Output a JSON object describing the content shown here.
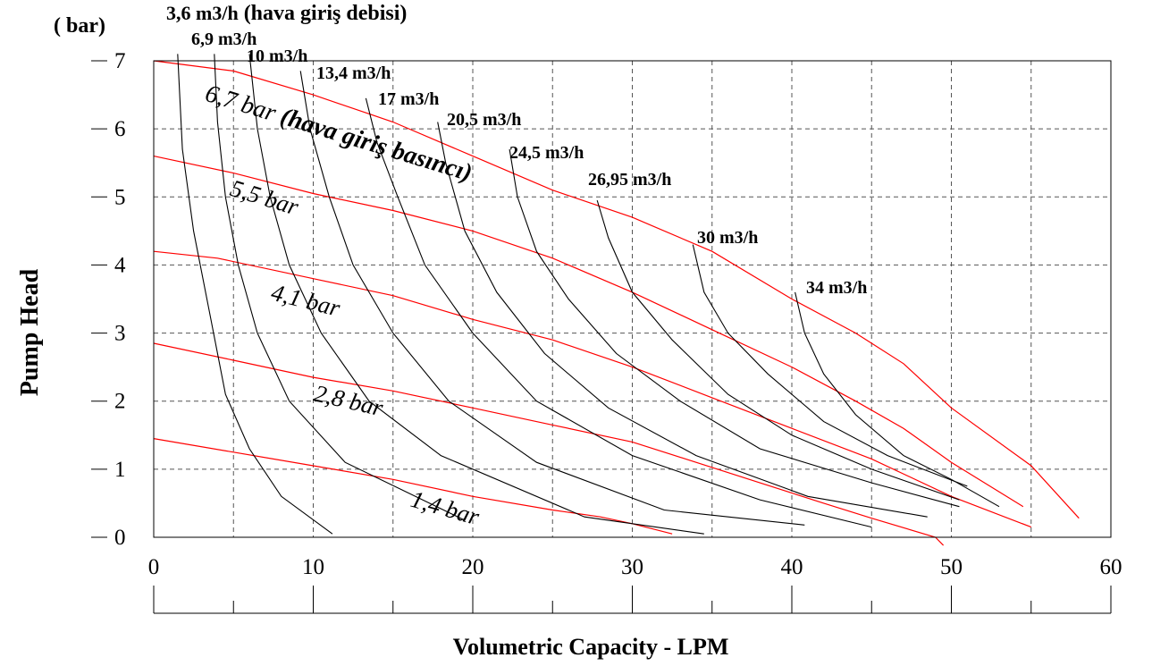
{
  "chart_data": {
    "type": "line",
    "xlabel": "Volumetric Capacity - LPM",
    "ylabel": "Pump Head",
    "yunit": "( bar)",
    "xlim": [
      0,
      60
    ],
    "ylim": [
      0,
      7
    ],
    "xticks": [
      "0",
      "10",
      "20",
      "30",
      "40",
      "50",
      "60"
    ],
    "yticks": [
      "0",
      "1",
      "2",
      "3",
      "4",
      "5",
      "6",
      "7"
    ],
    "grid": true,
    "colors": {
      "pressure": "#ff0000",
      "airflow": "#000000",
      "grid": "#555555"
    },
    "pressure_curves": [
      {
        "name": "6,7 bar",
        "suffix": " (hava giriş basıncı)",
        "points": [
          [
            0,
            7.0
          ],
          [
            5,
            6.85
          ],
          [
            10,
            6.5
          ],
          [
            15,
            6.1
          ],
          [
            20,
            5.6
          ],
          [
            25,
            5.1
          ],
          [
            30,
            4.7
          ],
          [
            35,
            4.2
          ],
          [
            40,
            3.5
          ],
          [
            44,
            3.0
          ],
          [
            47,
            2.55
          ],
          [
            50,
            1.9
          ],
          [
            55,
            1.05
          ],
          [
            58,
            0.28
          ]
        ]
      },
      {
        "name": "5,5 bar",
        "suffix": "",
        "points": [
          [
            0,
            5.6
          ],
          [
            5,
            5.35
          ],
          [
            10,
            5.05
          ],
          [
            15,
            4.8
          ],
          [
            20,
            4.5
          ],
          [
            25,
            4.1
          ],
          [
            30,
            3.6
          ],
          [
            35,
            3.05
          ],
          [
            40,
            2.5
          ],
          [
            44,
            2.0
          ],
          [
            47,
            1.6
          ],
          [
            50,
            1.1
          ],
          [
            54.5,
            0.45
          ]
        ]
      },
      {
        "name": "4,1 bar",
        "suffix": "",
        "points": [
          [
            0,
            4.2
          ],
          [
            4,
            4.1
          ],
          [
            10,
            3.8
          ],
          [
            15,
            3.55
          ],
          [
            20,
            3.2
          ],
          [
            25,
            2.9
          ],
          [
            30,
            2.5
          ],
          [
            35,
            2.05
          ],
          [
            40,
            1.6
          ],
          [
            45,
            1.15
          ],
          [
            50,
            0.6
          ],
          [
            55,
            0.15
          ]
        ]
      },
      {
        "name": "2,8 bar",
        "suffix": "",
        "points": [
          [
            0,
            2.85
          ],
          [
            5,
            2.6
          ],
          [
            10,
            2.35
          ],
          [
            15,
            2.15
          ],
          [
            20,
            1.9
          ],
          [
            25,
            1.65
          ],
          [
            30,
            1.4
          ],
          [
            34,
            1.1
          ],
          [
            38,
            0.8
          ],
          [
            42,
            0.5
          ],
          [
            45,
            0.28
          ],
          [
            49,
            0.0
          ],
          [
            49.5,
            -0.12
          ]
        ]
      },
      {
        "name": "1,4 bar",
        "suffix": "",
        "points": [
          [
            0,
            1.45
          ],
          [
            5,
            1.25
          ],
          [
            10,
            1.05
          ],
          [
            15,
            0.85
          ],
          [
            20,
            0.6
          ],
          [
            25,
            0.4
          ],
          [
            28,
            0.3
          ],
          [
            30,
            0.2
          ],
          [
            32.5,
            0.05
          ]
        ]
      }
    ],
    "airflow_curves": [
      {
        "name": "3,6 m3/h",
        "suffix": " (hava giriş debisi)",
        "points": [
          [
            1.5,
            7.1
          ],
          [
            1.8,
            5.7
          ],
          [
            2.5,
            4.5
          ],
          [
            3.5,
            3.3
          ],
          [
            4.5,
            2.1
          ],
          [
            6,
            1.3
          ],
          [
            8,
            0.6
          ],
          [
            11.2,
            0.05
          ]
        ]
      },
      {
        "name": "6,9 m3/h",
        "suffix": "",
        "points": [
          [
            3.8,
            7.1
          ],
          [
            4,
            6.1
          ],
          [
            4.5,
            5.0
          ],
          [
            5.3,
            4.0
          ],
          [
            6.5,
            3.0
          ],
          [
            8.5,
            2.0
          ],
          [
            12,
            1.1
          ],
          [
            19.5,
            0.25
          ]
        ]
      },
      {
        "name": "10 m3/h",
        "suffix": "",
        "points": [
          [
            6,
            7.1
          ],
          [
            6.5,
            6.0
          ],
          [
            7.3,
            5.0
          ],
          [
            8.5,
            4.0
          ],
          [
            10.5,
            3.0
          ],
          [
            13.5,
            2.0
          ],
          [
            18,
            1.2
          ],
          [
            27,
            0.3
          ],
          [
            34.5,
            0.05
          ]
        ]
      },
      {
        "name": "13,4 m3/h",
        "suffix": "",
        "points": [
          [
            9.2,
            6.85
          ],
          [
            9.8,
            6.0
          ],
          [
            11,
            5.0
          ],
          [
            12.5,
            4.0
          ],
          [
            15,
            3.0
          ],
          [
            18.5,
            2.0
          ],
          [
            24,
            1.1
          ],
          [
            32,
            0.4
          ],
          [
            40.8,
            0.18
          ]
        ]
      },
      {
        "name": "17 m3/h",
        "suffix": "",
        "points": [
          [
            13.3,
            6.45
          ],
          [
            14,
            5.8
          ],
          [
            15.3,
            5.0
          ],
          [
            17,
            4.0
          ],
          [
            20,
            3.0
          ],
          [
            24,
            2.0
          ],
          [
            30,
            1.2
          ],
          [
            38,
            0.55
          ],
          [
            45,
            0.15
          ]
        ]
      },
      {
        "name": "20,5 m3/h",
        "suffix": "",
        "points": [
          [
            17.8,
            6.1
          ],
          [
            18.3,
            5.5
          ],
          [
            19.5,
            4.5
          ],
          [
            21.5,
            3.6
          ],
          [
            24.5,
            2.7
          ],
          [
            28.5,
            1.9
          ],
          [
            34,
            1.2
          ],
          [
            41,
            0.6
          ],
          [
            48.5,
            0.3
          ]
        ]
      },
      {
        "name": "24,5 m3/h",
        "suffix": "",
        "points": [
          [
            22.3,
            5.7
          ],
          [
            22.8,
            5.0
          ],
          [
            24,
            4.2
          ],
          [
            26,
            3.5
          ],
          [
            29,
            2.7
          ],
          [
            33,
            2.0
          ],
          [
            38,
            1.3
          ],
          [
            45,
            0.8
          ],
          [
            50.5,
            0.45
          ]
        ]
      },
      {
        "name": "26,95 m3/h",
        "suffix": "",
        "points": [
          [
            27.8,
            4.95
          ],
          [
            28.5,
            4.4
          ],
          [
            30,
            3.6
          ],
          [
            32.5,
            2.9
          ],
          [
            36,
            2.1
          ],
          [
            40,
            1.5
          ],
          [
            45,
            1.0
          ],
          [
            50.5,
            0.55
          ]
        ]
      },
      {
        "name": "30 m3/h",
        "suffix": "",
        "points": [
          [
            33.8,
            4.3
          ],
          [
            34.5,
            3.6
          ],
          [
            36,
            3.0
          ],
          [
            38.5,
            2.4
          ],
          [
            42,
            1.7
          ],
          [
            46,
            1.2
          ],
          [
            51,
            0.75
          ]
        ]
      },
      {
        "name": "34 m3/h",
        "suffix": "",
        "points": [
          [
            40.2,
            3.6
          ],
          [
            40.8,
            3.0
          ],
          [
            42,
            2.4
          ],
          [
            44,
            1.8
          ],
          [
            47,
            1.2
          ],
          [
            50,
            0.85
          ],
          [
            53,
            0.45
          ]
        ]
      }
    ]
  }
}
